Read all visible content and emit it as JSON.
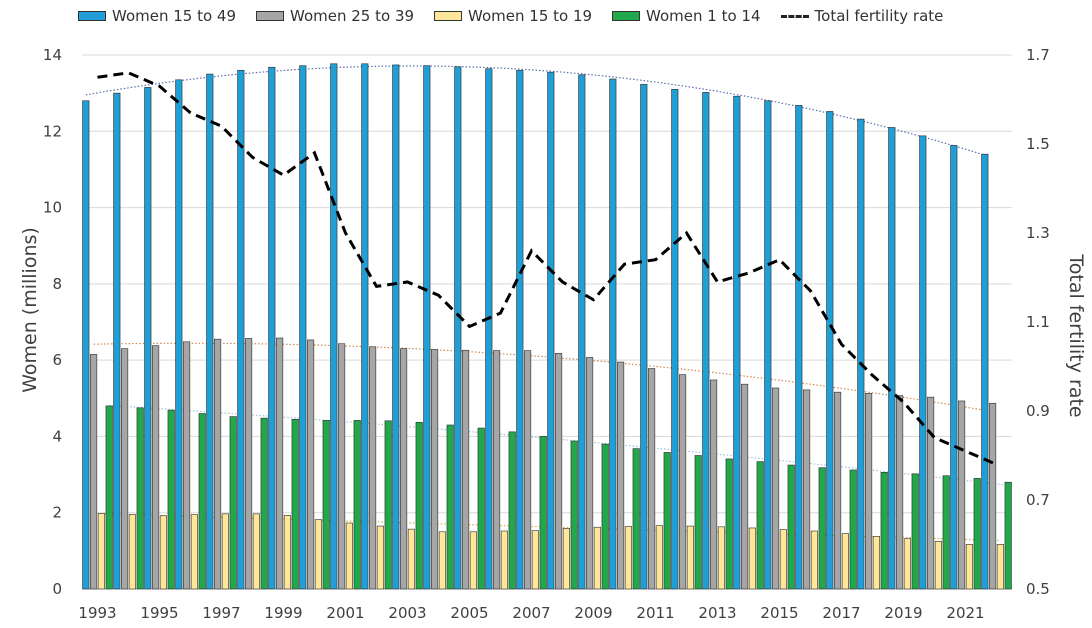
{
  "chart_data": {
    "type": "bar",
    "title": "",
    "xlabel": "",
    "ylabel": "Women (millions)",
    "y2label": "Total fertility rate",
    "ylim": [
      0,
      14
    ],
    "y2lim": [
      0.5,
      1.7
    ],
    "yticks": [
      "0",
      "2",
      "4",
      "6",
      "8",
      "10",
      "12",
      "14"
    ],
    "y2ticks": [
      "0.5",
      "0.7",
      "0.9",
      "1.1",
      "1.3",
      "1.5",
      "1.7"
    ],
    "x": [
      1993,
      1994,
      1995,
      1996,
      1997,
      1998,
      1999,
      2000,
      2001,
      2002,
      2003,
      2004,
      2005,
      2006,
      2007,
      2008,
      2009,
      2010,
      2011,
      2012,
      2013,
      2014,
      2015,
      2016,
      2017,
      2018,
      2019,
      2020,
      2021,
      2022
    ],
    "xticks": [
      "1993",
      "1995",
      "1997",
      "1999",
      "2001",
      "2003",
      "2005",
      "2007",
      "2009",
      "2011",
      "2013",
      "2015",
      "2017",
      "2019",
      "2021"
    ],
    "grid": true,
    "legend_position": "top",
    "series": [
      {
        "name": "Women 15 to 49",
        "type": "bar",
        "axis": "left",
        "color": "#1f9fd5",
        "values": [
          12.8,
          13.0,
          13.15,
          13.35,
          13.5,
          13.6,
          13.68,
          13.72,
          13.77,
          13.77,
          13.74,
          13.72,
          13.69,
          13.64,
          13.6,
          13.55,
          13.48,
          13.37,
          13.23,
          13.1,
          13.02,
          12.92,
          12.8,
          12.68,
          12.52,
          12.32,
          12.1,
          11.88,
          11.63,
          11.4
        ]
      },
      {
        "name": "Women 25 to 39",
        "type": "bar",
        "axis": "left",
        "color": "#a6a6a6",
        "values": [
          6.15,
          6.3,
          6.38,
          6.48,
          6.55,
          6.57,
          6.58,
          6.53,
          6.43,
          6.35,
          6.3,
          6.28,
          6.26,
          6.25,
          6.25,
          6.18,
          6.07,
          5.95,
          5.78,
          5.62,
          5.48,
          5.37,
          5.27,
          5.22,
          5.16,
          5.13,
          5.07,
          5.03,
          4.93,
          4.87
        ]
      },
      {
        "name": "Women 15 to 19",
        "type": "bar",
        "axis": "left",
        "color": "#ffe699",
        "values": [
          1.98,
          1.95,
          1.92,
          1.95,
          1.97,
          1.97,
          1.93,
          1.82,
          1.73,
          1.65,
          1.57,
          1.5,
          1.5,
          1.52,
          1.53,
          1.59,
          1.62,
          1.64,
          1.66,
          1.65,
          1.63,
          1.6,
          1.56,
          1.52,
          1.45,
          1.38,
          1.32,
          1.25,
          1.17,
          1.17
        ]
      },
      {
        "name": "Women 1 to 14",
        "type": "bar",
        "axis": "left",
        "color": "#21a84a",
        "values": [
          4.8,
          4.75,
          4.69,
          4.6,
          4.52,
          4.48,
          4.45,
          4.42,
          4.42,
          4.41,
          4.37,
          4.3,
          4.22,
          4.12,
          4.0,
          3.88,
          3.8,
          3.68,
          3.58,
          3.5,
          3.41,
          3.34,
          3.25,
          3.18,
          3.12,
          3.06,
          3.02,
          2.97,
          2.9,
          2.8
        ]
      },
      {
        "name": "Total fertility rate",
        "type": "line",
        "axis": "right",
        "color": "#000000",
        "values": [
          1.65,
          1.66,
          1.63,
          1.57,
          1.54,
          1.47,
          1.43,
          1.48,
          1.3,
          1.18,
          1.19,
          1.16,
          1.09,
          1.12,
          1.26,
          1.19,
          1.15,
          1.23,
          1.24,
          1.3,
          1.19,
          1.21,
          1.24,
          1.17,
          1.05,
          0.98,
          0.92,
          0.84,
          0.81,
          0.78
        ]
      }
    ]
  }
}
